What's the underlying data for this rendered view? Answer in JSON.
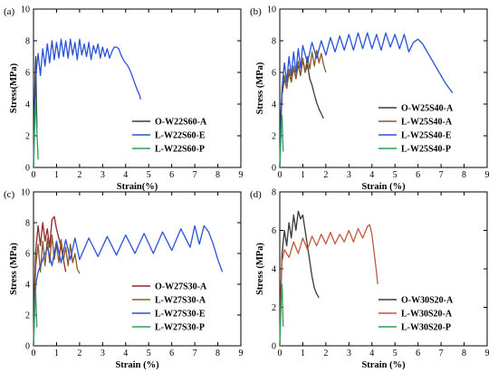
{
  "chart_data": [
    {
      "type": "line",
      "panel_label": "(a)",
      "xlabel": "Strain(%)",
      "ylabel": "Stress(MPa)",
      "xlim": [
        0,
        9
      ],
      "ylim": [
        0,
        10
      ],
      "x_ticks": [
        "0",
        "1",
        "2",
        "3",
        "4",
        "5",
        "6",
        "7",
        "8",
        "9"
      ],
      "y_ticks": [
        "0",
        "2",
        "4",
        "6",
        "8",
        "10"
      ],
      "legend_position": "bottom-right",
      "series": [
        {
          "name": "O-W22S60-A",
          "color": "#3a3a3a",
          "x": [
            0,
            0.02,
            0.05,
            0.08,
            0.1,
            0.12,
            0.15
          ],
          "y": [
            0,
            2.5,
            4.5,
            6.2,
            7.0,
            4.5,
            2.5
          ]
        },
        {
          "name": "L-W22S60-E",
          "color": "#2a52d6",
          "x": [
            0,
            0.05,
            0.1,
            0.2,
            0.3,
            0.4,
            0.5,
            0.6,
            0.7,
            0.8,
            0.9,
            1.0,
            1.1,
            1.2,
            1.3,
            1.4,
            1.5,
            1.6,
            1.7,
            1.8,
            1.9,
            2.0,
            2.1,
            2.2,
            2.3,
            2.4,
            2.5,
            2.6,
            2.7,
            2.8,
            2.9,
            3.0,
            3.1,
            3.2,
            3.3,
            3.4,
            3.5,
            3.6,
            3.7,
            3.8,
            3.9,
            4.0,
            4.1,
            4.2,
            4.3,
            4.4,
            4.5,
            4.6,
            4.65
          ],
          "y": [
            0,
            3.5,
            5.8,
            7.2,
            5.8,
            7.5,
            6.4,
            7.8,
            6.6,
            8.0,
            6.8,
            7.9,
            6.9,
            8.1,
            7.0,
            8.0,
            6.9,
            8.1,
            7.1,
            7.9,
            6.8,
            8.1,
            7.1,
            7.8,
            7.0,
            7.9,
            6.8,
            7.7,
            7.2,
            7.8,
            6.9,
            7.6,
            7.0,
            7.5,
            6.9,
            7.3,
            7.6,
            7.6,
            7.5,
            7.1,
            6.8,
            6.6,
            6.4,
            6.1,
            5.7,
            5.3,
            4.9,
            4.6,
            4.3
          ]
        },
        {
          "name": "L-W22S60-P",
          "color": "#2e9e57",
          "x": [
            0,
            0.03,
            0.06,
            0.1,
            0.12,
            0.15,
            0.18,
            0.2
          ],
          "y": [
            0,
            1.5,
            3.2,
            4.3,
            3.0,
            2.2,
            1.2,
            0.5
          ]
        }
      ]
    },
    {
      "type": "line",
      "panel_label": "(b)",
      "xlabel": "Strain (%)",
      "ylabel": "Stress (MPa)",
      "xlim": [
        0,
        9
      ],
      "ylim": [
        0,
        10
      ],
      "x_ticks": [
        "0",
        "1",
        "2",
        "3",
        "4",
        "5",
        "6",
        "7",
        "8",
        "9"
      ],
      "y_ticks": [
        "0",
        "2",
        "4",
        "6",
        "8",
        "10"
      ],
      "legend_position": "bottom-right",
      "series": [
        {
          "name": "O-W25S40-A",
          "color": "#3a3a3a",
          "x": [
            0,
            0.05,
            0.1,
            0.2,
            0.3,
            0.4,
            0.5,
            0.6,
            0.7,
            0.8,
            0.9,
            1.0,
            1.1,
            1.2,
            1.3,
            1.4,
            1.5,
            1.6,
            1.7,
            1.8,
            1.9
          ],
          "y": [
            0,
            3.0,
            4.6,
            5.6,
            5.0,
            6.0,
            5.4,
            6.3,
            5.6,
            6.5,
            5.8,
            6.8,
            6.0,
            6.5,
            5.6,
            5.2,
            4.6,
            4.1,
            3.7,
            3.4,
            3.1
          ]
        },
        {
          "name": "L-W25S40-A",
          "color": "#8b5a2b",
          "x": [
            0,
            0.05,
            0.1,
            0.2,
            0.3,
            0.4,
            0.5,
            0.6,
            0.7,
            0.8,
            0.9,
            1.0,
            1.1,
            1.2,
            1.3,
            1.4,
            1.5,
            1.6,
            1.7,
            1.8,
            1.9,
            2.0
          ],
          "y": [
            0,
            3.5,
            4.8,
            5.8,
            5.0,
            6.2,
            5.4,
            6.4,
            5.6,
            6.7,
            5.8,
            6.9,
            6.0,
            7.0,
            6.2,
            7.3,
            6.4,
            7.4,
            6.6,
            7.2,
            6.5,
            6.0
          ]
        },
        {
          "name": "L-W25S40-E",
          "color": "#2a52d6",
          "x": [
            0,
            0.05,
            0.1,
            0.2,
            0.3,
            0.4,
            0.5,
            0.6,
            0.7,
            0.8,
            0.9,
            1.0,
            1.2,
            1.4,
            1.6,
            1.8,
            2.0,
            2.2,
            2.4,
            2.6,
            2.8,
            3.0,
            3.2,
            3.4,
            3.6,
            3.8,
            4.0,
            4.2,
            4.4,
            4.6,
            4.8,
            5.0,
            5.2,
            5.4,
            5.6,
            5.8,
            6.0,
            6.2,
            6.4,
            6.6,
            6.8,
            7.0,
            7.2,
            7.4,
            7.5
          ],
          "y": [
            0,
            3.2,
            5.0,
            6.6,
            5.4,
            7.0,
            5.8,
            7.3,
            6.0,
            7.5,
            6.3,
            7.7,
            6.6,
            7.9,
            6.9,
            8.0,
            7.1,
            8.2,
            7.3,
            8.3,
            7.4,
            8.4,
            7.4,
            8.5,
            7.5,
            8.5,
            7.5,
            8.4,
            7.4,
            8.5,
            7.6,
            8.4,
            7.5,
            8.4,
            7.3,
            7.9,
            8.1,
            7.8,
            7.3,
            6.8,
            6.3,
            5.8,
            5.3,
            4.9,
            4.7
          ]
        },
        {
          "name": "L-W25S40-P",
          "color": "#2e9e57",
          "x": [
            0,
            0.03,
            0.06,
            0.1,
            0.12,
            0.15
          ],
          "y": [
            0,
            1.2,
            2.4,
            3.3,
            2.0,
            1.0
          ]
        }
      ]
    },
    {
      "type": "line",
      "panel_label": "(c)",
      "xlabel": "Strain (%)",
      "ylabel": "Stress (MPa)",
      "xlim": [
        0,
        9
      ],
      "ylim": [
        0,
        10
      ],
      "x_ticks": [
        "0",
        "1",
        "2",
        "3",
        "4",
        "5",
        "6",
        "7",
        "8",
        "9"
      ],
      "y_ticks": [
        "0",
        "2",
        "4",
        "6",
        "8",
        "10"
      ],
      "legend_position": "bottom-right",
      "series": [
        {
          "name": "O-W27S30-A",
          "color": "#8b2a2a",
          "x": [
            0,
            0.05,
            0.1,
            0.2,
            0.3,
            0.4,
            0.5,
            0.6,
            0.7,
            0.8,
            0.9,
            1.0,
            1.1,
            1.2,
            1.3,
            1.4
          ],
          "y": [
            0,
            4.0,
            6.2,
            7.8,
            6.5,
            8.0,
            6.8,
            7.6,
            6.4,
            8.2,
            8.4,
            7.6,
            7.0,
            6.4,
            5.6,
            4.8
          ]
        },
        {
          "name": "L-W27S30-A",
          "color": "#8b5a2b",
          "x": [
            0,
            0.05,
            0.1,
            0.2,
            0.3,
            0.4,
            0.5,
            0.6,
            0.7,
            0.8,
            0.9,
            1.0,
            1.1,
            1.2,
            1.3,
            1.4,
            1.5,
            1.6,
            1.7,
            1.8,
            1.9,
            2.0
          ],
          "y": [
            0,
            3.6,
            5.2,
            6.6,
            4.8,
            6.8,
            5.2,
            7.0,
            5.4,
            7.2,
            5.6,
            6.6,
            5.4,
            6.9,
            5.6,
            6.4,
            5.2,
            6.6,
            5.4,
            6.0,
            5.0,
            4.7
          ]
        },
        {
          "name": "L-W27S30-E",
          "color": "#2a52d6",
          "x": [
            0,
            0.05,
            0.1,
            0.2,
            0.4,
            0.6,
            0.8,
            1.0,
            1.2,
            1.4,
            1.6,
            1.8,
            2.0,
            2.4,
            2.8,
            3.2,
            3.6,
            4.0,
            4.4,
            4.8,
            5.2,
            5.6,
            6.0,
            6.4,
            6.8,
            7.0,
            7.2,
            7.4,
            7.6,
            7.8,
            8.0,
            8.2
          ],
          "y": [
            0,
            2.5,
            4.0,
            4.8,
            5.6,
            6.4,
            5.2,
            6.8,
            5.4,
            6.9,
            5.6,
            7.0,
            5.6,
            7.0,
            5.8,
            7.1,
            5.9,
            7.2,
            6.0,
            7.3,
            6.0,
            7.4,
            6.2,
            7.6,
            6.4,
            7.8,
            6.6,
            7.8,
            7.4,
            6.6,
            5.6,
            4.8
          ]
        },
        {
          "name": "L-W27S30-P",
          "color": "#2e9e57",
          "x": [
            0,
            0.03,
            0.06,
            0.1,
            0.12,
            0.15
          ],
          "y": [
            0,
            1.3,
            2.5,
            3.4,
            2.2,
            1.2
          ]
        }
      ]
    },
    {
      "type": "line",
      "panel_label": "(d)",
      "xlabel": "Strain (%)",
      "ylabel": "Stress (MPa)",
      "xlim": [
        0,
        9
      ],
      "ylim": [
        0,
        8
      ],
      "x_ticks": [
        "0",
        "1",
        "2",
        "3",
        "4",
        "5",
        "6",
        "7",
        "8",
        "9"
      ],
      "y_ticks": [
        "0",
        "2",
        "4",
        "6",
        "8"
      ],
      "legend_position": "bottom-right",
      "series": [
        {
          "name": "O-W30S20-A",
          "color": "#3a3a3a",
          "x": [
            0,
            0.05,
            0.1,
            0.2,
            0.3,
            0.4,
            0.5,
            0.6,
            0.7,
            0.8,
            0.9,
            1.0,
            1.1,
            1.2,
            1.3,
            1.4,
            1.5,
            1.6,
            1.7
          ],
          "y": [
            0,
            3.0,
            4.8,
            6.0,
            5.2,
            6.4,
            5.6,
            6.8,
            6.0,
            7.0,
            6.6,
            6.8,
            6.0,
            5.2,
            4.4,
            3.6,
            3.0,
            2.7,
            2.5
          ]
        },
        {
          "name": "L-W30S20-A",
          "color": "#c05a3a",
          "x": [
            0,
            0.05,
            0.1,
            0.2,
            0.4,
            0.6,
            0.8,
            1.0,
            1.2,
            1.4,
            1.6,
            1.8,
            2.0,
            2.2,
            2.4,
            2.6,
            2.8,
            3.0,
            3.2,
            3.4,
            3.6,
            3.8,
            3.9,
            4.0,
            4.1,
            4.2,
            4.25
          ],
          "y": [
            0,
            3.0,
            4.4,
            5.0,
            4.6,
            5.4,
            4.8,
            5.6,
            5.0,
            5.7,
            5.2,
            5.8,
            5.3,
            5.9,
            5.3,
            5.8,
            5.4,
            6.0,
            5.4,
            6.1,
            5.6,
            6.2,
            6.3,
            5.8,
            4.8,
            3.8,
            3.2
          ]
        },
        {
          "name": "L-W30S20-P",
          "color": "#2e9e57",
          "x": [
            0,
            0.03,
            0.06,
            0.1,
            0.12,
            0.15
          ],
          "y": [
            0,
            1.2,
            2.4,
            3.2,
            2.0,
            1.0
          ]
        }
      ]
    }
  ]
}
